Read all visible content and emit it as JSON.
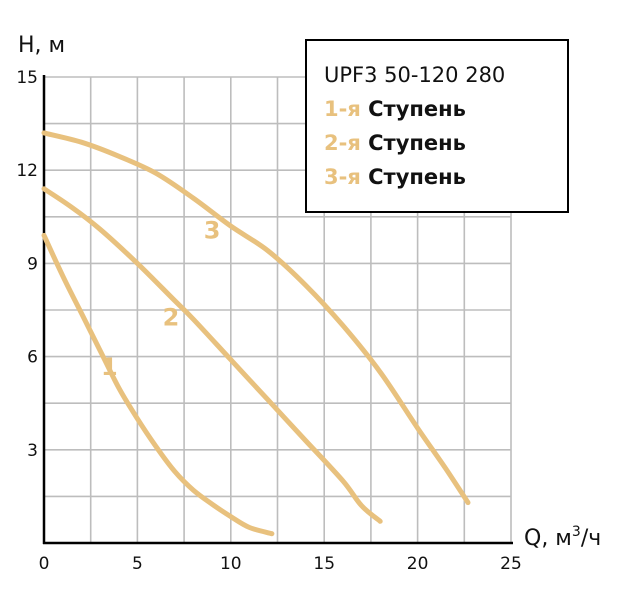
{
  "colors": {
    "curve": "#E8C17E",
    "grid": "#BDBDBD",
    "axis": "#000000",
    "text": "#111111"
  },
  "chart_data": {
    "type": "line",
    "ylabel": "H, м",
    "xlabel_prefix": "Q, м",
    "xlabel_sup": "3",
    "xlabel_suffix": "/ч",
    "xlim": [
      0,
      25
    ],
    "ylim": [
      0,
      15
    ],
    "xticks": [
      0,
      5,
      10,
      15,
      20,
      25
    ],
    "yticks": [
      3,
      6,
      9,
      12,
      15
    ],
    "x_tick_labels": [
      "0",
      "5",
      "10",
      "15",
      "20",
      "25"
    ],
    "y_tick_labels": [
      "3",
      "6",
      "9",
      "12",
      "15"
    ],
    "grid": true,
    "grid_step_x": 2.5,
    "grid_step_y": 1.5,
    "legend_position": "top-right",
    "legend_title": "UPF3 50-120 280",
    "series": [
      {
        "name": "1-я Ступень",
        "label": "1",
        "label_pos": [
          3.5,
          5.4
        ],
        "points": [
          [
            0,
            9.9
          ],
          [
            1,
            8.6
          ],
          [
            2,
            7.4
          ],
          [
            3,
            6.2
          ],
          [
            4,
            5.0
          ],
          [
            5,
            4.0
          ],
          [
            6,
            3.1
          ],
          [
            7,
            2.3
          ],
          [
            8,
            1.7
          ],
          [
            9,
            1.25
          ],
          [
            10,
            0.85
          ],
          [
            11,
            0.5
          ],
          [
            12.2,
            0.3
          ]
        ]
      },
      {
        "name": "2-я Ступень",
        "label": "2",
        "label_pos": [
          6.8,
          7.0
        ],
        "points": [
          [
            0,
            11.4
          ],
          [
            1.5,
            10.8
          ],
          [
            3,
            10.1
          ],
          [
            5,
            9.0
          ],
          [
            7,
            7.8
          ],
          [
            8,
            7.2
          ],
          [
            10,
            5.9
          ],
          [
            12,
            4.6
          ],
          [
            14,
            3.3
          ],
          [
            16,
            2.0
          ],
          [
            17,
            1.2
          ],
          [
            18,
            0.7
          ]
        ]
      },
      {
        "name": "3-я Ступень",
        "label": "3",
        "label_pos": [
          9.0,
          9.8
        ],
        "points": [
          [
            0,
            13.2
          ],
          [
            2,
            12.9
          ],
          [
            4,
            12.45
          ],
          [
            6,
            11.9
          ],
          [
            8,
            11.1
          ],
          [
            10,
            10.2
          ],
          [
            12,
            9.4
          ],
          [
            14,
            8.3
          ],
          [
            16,
            7.0
          ],
          [
            18,
            5.5
          ],
          [
            20,
            3.7
          ],
          [
            21.5,
            2.4
          ],
          [
            22.7,
            1.3
          ]
        ]
      }
    ]
  }
}
